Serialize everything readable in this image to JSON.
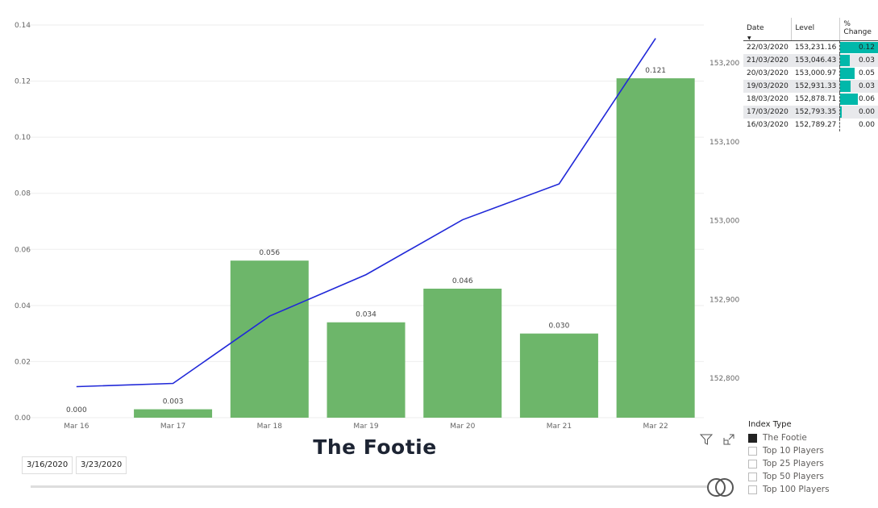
{
  "chart_data": {
    "type": "bar+line",
    "title": "The Footie",
    "categories": [
      "Mar 16",
      "Mar 17",
      "Mar 18",
      "Mar 19",
      "Mar 20",
      "Mar 21",
      "Mar 22"
    ],
    "series": [
      {
        "type": "bar",
        "values": [
          0.0,
          0.003,
          0.056,
          0.034,
          0.046,
          0.03,
          0.121
        ],
        "labels": [
          "0.000",
          "0.003",
          "0.056",
          "0.034",
          "0.046",
          "0.030",
          "0.121"
        ],
        "color": "#6db66a",
        "axis": "left"
      },
      {
        "type": "line",
        "values": [
          152789.27,
          152793.35,
          152878.71,
          152931.33,
          153000.97,
          153046.43,
          153231.16
        ],
        "color": "#2028d8",
        "axis": "right"
      }
    ],
    "ylim": [
      0,
      0.14
    ],
    "yticks": [
      "0.00",
      "0.02",
      "0.04",
      "0.06",
      "0.08",
      "0.10",
      "0.12",
      "0.14"
    ],
    "y2lim": [
      152750,
      153250
    ],
    "y2ticks": [
      "152,800",
      "152,900",
      "153,000",
      "153,100",
      "153,200"
    ],
    "grid": true
  },
  "table": {
    "headers": [
      "Date",
      "Level",
      "% Change"
    ],
    "rows": [
      [
        "22/03/2020",
        "153,231.16",
        "0.12"
      ],
      [
        "21/03/2020",
        "153,046.43",
        "0.03"
      ],
      [
        "20/03/2020",
        "153,000.97",
        "0.05"
      ],
      [
        "19/03/2020",
        "152,931.33",
        "0.03"
      ],
      [
        "18/03/2020",
        "152,878.71",
        "0.06"
      ],
      [
        "17/03/2020",
        "152,793.35",
        "0.00"
      ],
      [
        "16/03/2020",
        "152,789.27",
        "0.00"
      ]
    ],
    "bar_values": [
      0.121,
      0.03,
      0.046,
      0.034,
      0.056,
      0.003,
      0.0
    ],
    "bar_color": "#01b8aa"
  },
  "slicer": {
    "title": "Index Type",
    "items": [
      {
        "label": "The Footie",
        "checked": true
      },
      {
        "label": "Top 10 Players",
        "checked": false
      },
      {
        "label": "Top 25 Players",
        "checked": false
      },
      {
        "label": "Top 50 Players",
        "checked": false
      },
      {
        "label": "Top 100 Players",
        "checked": false
      }
    ]
  },
  "date_range": {
    "start": "3/16/2020",
    "end": "3/23/2020"
  },
  "icons": [
    "filter-icon",
    "focus-mode-icon"
  ]
}
